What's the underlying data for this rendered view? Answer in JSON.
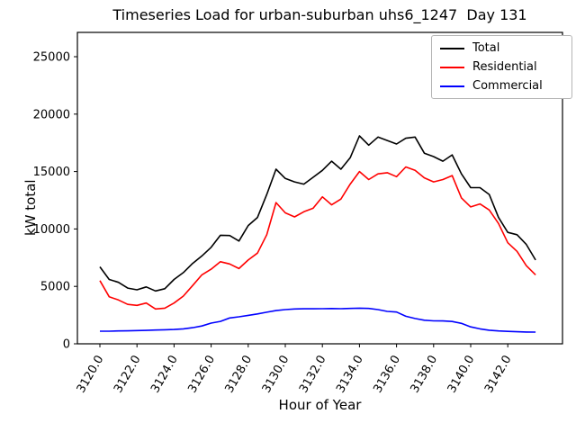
{
  "title": "Timeseries Load for urban-suburban uhs6_1247  Day 131",
  "chart_data": {
    "type": "line",
    "title": "Timeseries Load for urban-suburban uhs6_1247  Day 131",
    "xlabel": "Hour of Year",
    "ylabel": "kW total",
    "grid": false,
    "legend_position": "upper right",
    "xlim": [
      3118.8,
      3145.0
    ],
    "ylim": [
      0,
      27100
    ],
    "x_tick_labels": [
      "3120.0",
      "3122.0",
      "3124.0",
      "3126.0",
      "3128.0",
      "3130.0",
      "3132.0",
      "3134.0",
      "3136.0",
      "3138.0",
      "3140.0",
      "3142.0"
    ],
    "x_tick_values": [
      3120,
      3122,
      3124,
      3126,
      3128,
      3130,
      3132,
      3134,
      3136,
      3138,
      3140,
      3142
    ],
    "y_tick_labels": [
      "0",
      "5000",
      "10000",
      "15000",
      "20000",
      "25000"
    ],
    "y_tick_values": [
      0,
      5000,
      10000,
      15000,
      20000,
      25000
    ],
    "x": [
      3120.0,
      3120.5,
      3121.0,
      3121.5,
      3122.0,
      3122.5,
      3123.0,
      3123.5,
      3124.0,
      3124.5,
      3125.0,
      3125.5,
      3126.0,
      3126.5,
      3127.0,
      3127.5,
      3128.0,
      3128.5,
      3129.0,
      3129.5,
      3130.0,
      3130.5,
      3131.0,
      3131.5,
      3132.0,
      3132.5,
      3133.0,
      3133.5,
      3134.0,
      3134.5,
      3135.0,
      3135.5,
      3136.0,
      3136.5,
      3137.0,
      3137.5,
      3138.0,
      3138.5,
      3139.0,
      3139.5,
      3140.0,
      3140.5,
      3141.0,
      3141.5,
      3142.0,
      3142.5,
      3143.0,
      3143.5
    ],
    "series": [
      {
        "name": "Total",
        "color": "#000000",
        "values": [
          6700,
          5600,
          5350,
          4850,
          4700,
          4950,
          4600,
          4800,
          5600,
          6200,
          7000,
          7650,
          8400,
          9450,
          9430,
          8950,
          10300,
          11000,
          13000,
          15200,
          14400,
          14100,
          13900,
          14500,
          15100,
          15900,
          15200,
          16200,
          18100,
          17300,
          18000,
          17700,
          17400,
          17900,
          18000,
          16600,
          16300,
          15900,
          16450,
          14800,
          13600,
          13600,
          13000,
          11000,
          9700,
          9500,
          8650,
          7300
        ]
      },
      {
        "name": "Residential",
        "color": "#ff0000",
        "values": [
          5500,
          4100,
          3820,
          3430,
          3350,
          3550,
          3030,
          3100,
          3550,
          4150,
          5070,
          6000,
          6500,
          7150,
          6950,
          6550,
          7300,
          7900,
          9500,
          12300,
          11400,
          11050,
          11500,
          11800,
          12800,
          12100,
          12600,
          13900,
          15000,
          14300,
          14800,
          14900,
          14550,
          15400,
          15100,
          14450,
          14100,
          14300,
          14650,
          12700,
          11920,
          12180,
          11650,
          10480,
          8800,
          8050,
          6800,
          6000
        ]
      },
      {
        "name": "Commercial",
        "color": "#0000ff",
        "values": [
          1100,
          1100,
          1120,
          1130,
          1150,
          1170,
          1200,
          1220,
          1250,
          1300,
          1400,
          1550,
          1800,
          1950,
          2250,
          2350,
          2480,
          2600,
          2750,
          2890,
          2980,
          3030,
          3050,
          3050,
          3060,
          3070,
          3060,
          3080,
          3100,
          3080,
          2980,
          2820,
          2770,
          2400,
          2200,
          2050,
          2000,
          1990,
          1940,
          1780,
          1470,
          1300,
          1180,
          1120,
          1080,
          1050,
          1030,
          1020
        ]
      }
    ]
  }
}
